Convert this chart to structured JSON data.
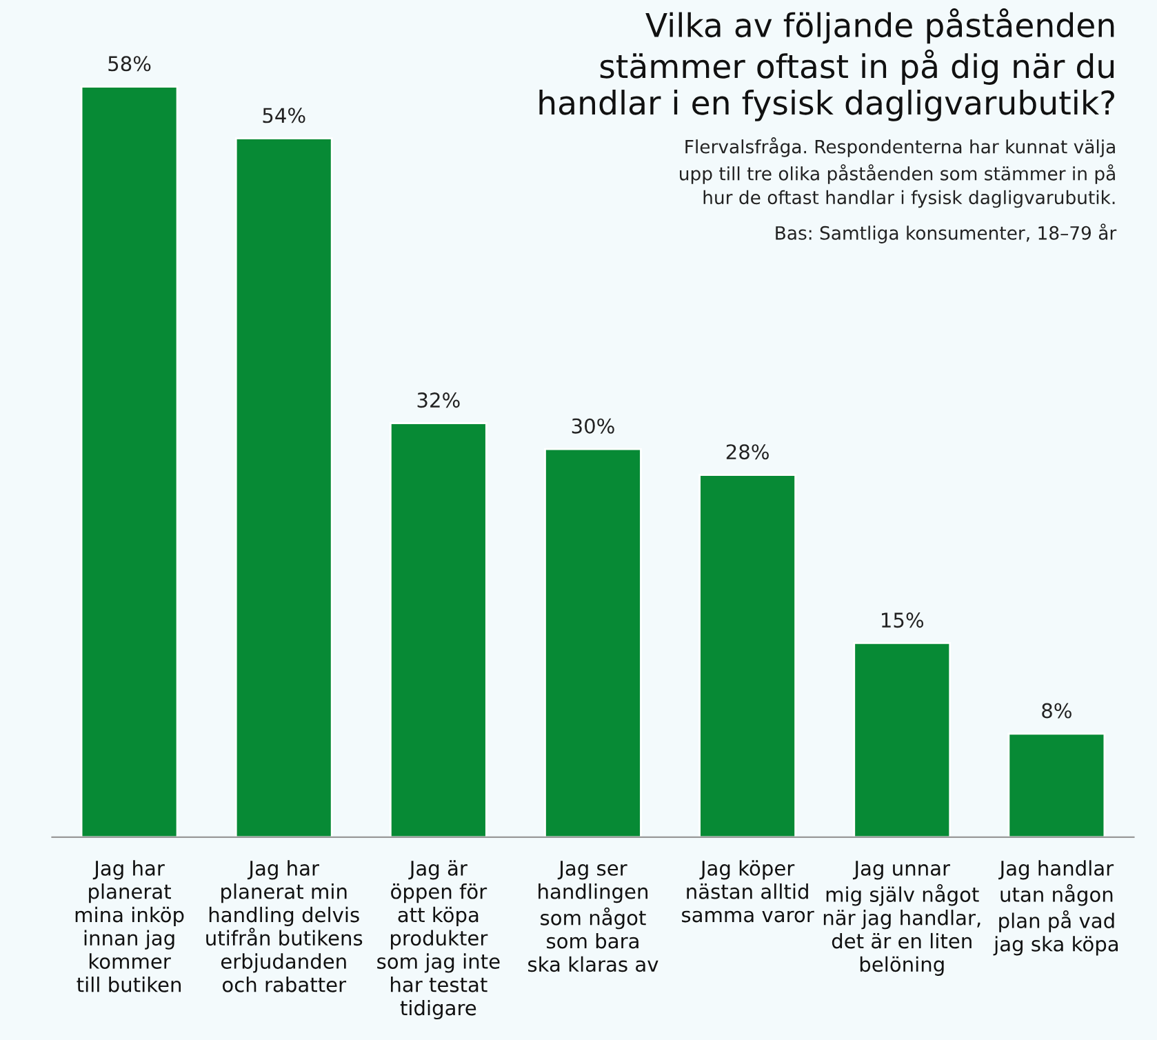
{
  "chart_data": {
    "type": "bar",
    "title": "Vilka av följande påståenden\nstämmer oftast in på dig när du\nhandlar i en fysisk dagligvarubutik?",
    "subtitle": "Flervalsfråga. Respondenterna har kunnat välja\nupp till tre olika påståenden som stämmer in på\nhur de oftast handlar i fysisk dagligvarubutik.",
    "annotations": [
      "Bas: Samtliga konsumenter, 18–79 år"
    ],
    "categories": [
      "Jag har\nplanerat\nmina inköp\ninnan jag\nkommer\ntill butiken",
      "Jag har\nplanerat min\nhandling delvis\nutifrån butikens\nerbjudanden\noch rabatter",
      "Jag är\nöppen för\natt köpa\nprodukter\nsom jag inte\nhar testat\ntidigare",
      "Jag ser\nhandlingen\nsom något\nsom bara\nska klaras av",
      "Jag köper\nnästan alltid\nsamma varor",
      "Jag unnar\nmig själv något\nnär jag handlar,\ndet är en liten\nbelöning",
      "Jag handlar\nutan någon\nplan på vad\njag ska köpa"
    ],
    "values": [
      58,
      54,
      32,
      30,
      28,
      15,
      8
    ],
    "value_labels": [
      "58%",
      "54%",
      "32%",
      "30%",
      "28%",
      "15%",
      "8%"
    ],
    "color": "#078a35",
    "grid": false,
    "legend": false
  }
}
